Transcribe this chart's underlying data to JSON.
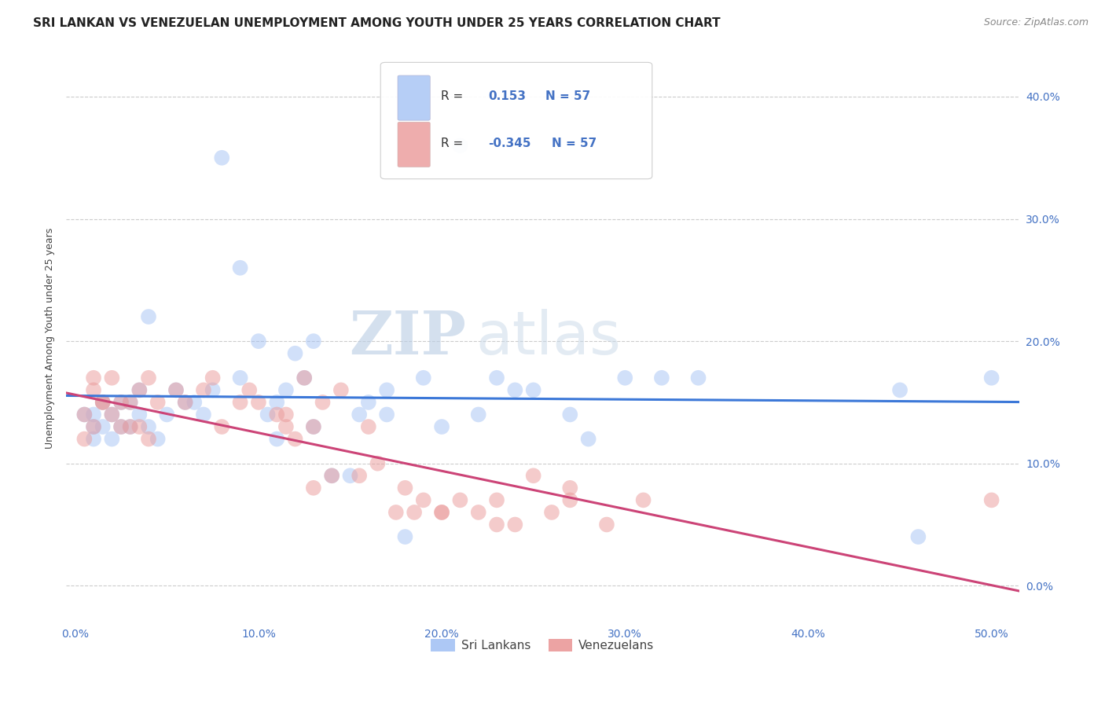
{
  "title": "SRI LANKAN VS VENEZUELAN UNEMPLOYMENT AMONG YOUTH UNDER 25 YEARS CORRELATION CHART",
  "source": "Source: ZipAtlas.com",
  "xlabel_vals": [
    0.0,
    0.1,
    0.2,
    0.3,
    0.4,
    0.5
  ],
  "ylabel_vals": [
    0.0,
    0.1,
    0.2,
    0.3,
    0.4
  ],
  "xlim": [
    -0.005,
    0.515
  ],
  "ylim": [
    -0.03,
    0.435
  ],
  "ylabel": "Unemployment Among Youth under 25 years",
  "legend_sri": "Sri Lankans",
  "legend_ven": "Venezuelans",
  "R_sri": "0.153",
  "N_sri": "57",
  "R_ven": "-0.345",
  "N_ven": "57",
  "color_sri": "#a4c2f4",
  "color_ven": "#ea9999",
  "line_color_sri": "#3c78d8",
  "line_color_ven": "#cc4477",
  "background_color": "#ffffff",
  "grid_color": "#cccccc",
  "watermark_zip": "ZIP",
  "watermark_atlas": "atlas",
  "title_fontsize": 11,
  "source_fontsize": 9,
  "axis_label_fontsize": 9,
  "tick_fontsize": 10,
  "legend_fontsize": 11,
  "watermark_fontsize_zip": 55,
  "watermark_fontsize_atlas": 55,
  "scatter_size": 200,
  "scatter_alpha": 0.5,
  "line_width": 2.2,
  "sri_x": [
    0.005,
    0.01,
    0.015,
    0.01,
    0.02,
    0.025,
    0.02,
    0.015,
    0.01,
    0.025,
    0.03,
    0.035,
    0.04,
    0.03,
    0.035,
    0.05,
    0.055,
    0.06,
    0.04,
    0.045,
    0.07,
    0.08,
    0.065,
    0.075,
    0.09,
    0.1,
    0.11,
    0.12,
    0.105,
    0.115,
    0.13,
    0.15,
    0.125,
    0.14,
    0.16,
    0.18,
    0.17,
    0.155,
    0.19,
    0.21,
    0.13,
    0.11,
    0.09,
    0.17,
    0.23,
    0.25,
    0.27,
    0.3,
    0.32,
    0.28,
    0.34,
    0.5,
    0.45,
    0.46,
    0.2,
    0.22,
    0.24
  ],
  "sri_y": [
    0.14,
    0.13,
    0.15,
    0.12,
    0.14,
    0.13,
    0.12,
    0.13,
    0.14,
    0.15,
    0.13,
    0.14,
    0.22,
    0.15,
    0.16,
    0.14,
    0.16,
    0.15,
    0.13,
    0.12,
    0.14,
    0.35,
    0.15,
    0.16,
    0.26,
    0.2,
    0.15,
    0.19,
    0.14,
    0.16,
    0.13,
    0.09,
    0.17,
    0.09,
    0.15,
    0.04,
    0.14,
    0.14,
    0.17,
    0.36,
    0.2,
    0.12,
    0.17,
    0.16,
    0.17,
    0.16,
    0.14,
    0.17,
    0.17,
    0.12,
    0.17,
    0.17,
    0.16,
    0.04,
    0.13,
    0.14,
    0.16
  ],
  "ven_x": [
    0.005,
    0.01,
    0.015,
    0.01,
    0.02,
    0.025,
    0.02,
    0.015,
    0.01,
    0.005,
    0.03,
    0.035,
    0.025,
    0.04,
    0.045,
    0.055,
    0.04,
    0.035,
    0.06,
    0.03,
    0.07,
    0.08,
    0.075,
    0.09,
    0.095,
    0.11,
    0.12,
    0.13,
    0.1,
    0.115,
    0.14,
    0.125,
    0.155,
    0.165,
    0.135,
    0.145,
    0.18,
    0.16,
    0.115,
    0.19,
    0.13,
    0.2,
    0.23,
    0.21,
    0.25,
    0.26,
    0.27,
    0.29,
    0.31,
    0.5,
    0.27,
    0.22,
    0.23,
    0.175,
    0.2,
    0.185,
    0.24
  ],
  "ven_y": [
    0.14,
    0.17,
    0.15,
    0.16,
    0.17,
    0.15,
    0.14,
    0.15,
    0.13,
    0.12,
    0.15,
    0.16,
    0.13,
    0.17,
    0.15,
    0.16,
    0.12,
    0.13,
    0.15,
    0.13,
    0.16,
    0.13,
    0.17,
    0.15,
    0.16,
    0.14,
    0.12,
    0.13,
    0.15,
    0.14,
    0.09,
    0.17,
    0.09,
    0.1,
    0.15,
    0.16,
    0.08,
    0.13,
    0.13,
    0.07,
    0.08,
    0.06,
    0.05,
    0.07,
    0.09,
    0.06,
    0.07,
    0.05,
    0.07,
    0.07,
    0.08,
    0.06,
    0.07,
    0.06,
    0.06,
    0.06,
    0.05
  ]
}
